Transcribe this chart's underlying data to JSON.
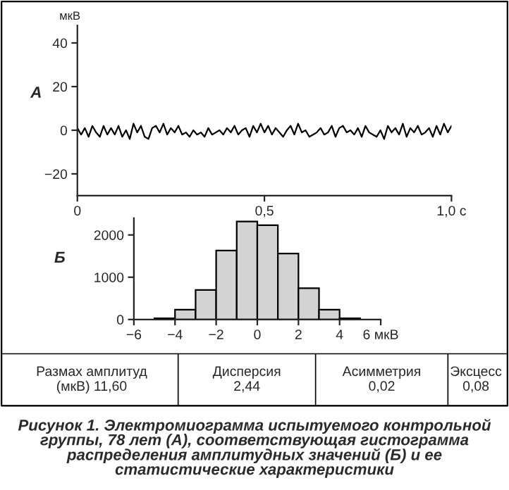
{
  "chart_data": [
    {
      "type": "line",
      "ylabel": "мкВ",
      "annotations": [
        "А"
      ],
      "color": "#000000",
      "x": [
        0,
        0.01,
        0.02,
        0.03,
        0.04,
        0.05,
        0.06,
        0.07,
        0.08,
        0.09,
        0.1,
        0.11,
        0.12,
        0.13,
        0.14,
        0.15,
        0.16,
        0.17,
        0.18,
        0.19,
        0.2,
        0.21,
        0.22,
        0.23,
        0.24,
        0.25,
        0.26,
        0.27,
        0.28,
        0.29,
        0.3,
        0.31,
        0.32,
        0.33,
        0.34,
        0.35,
        0.36,
        0.37,
        0.38,
        0.39,
        0.4,
        0.41,
        0.42,
        0.43,
        0.44,
        0.45,
        0.46,
        0.47,
        0.48,
        0.49,
        0.5,
        0.51,
        0.52,
        0.53,
        0.54,
        0.55,
        0.56,
        0.57,
        0.58,
        0.59,
        0.6,
        0.61,
        0.62,
        0.63,
        0.64,
        0.65,
        0.66,
        0.67,
        0.68,
        0.69,
        0.7,
        0.71,
        0.72,
        0.73,
        0.74,
        0.75,
        0.76,
        0.77,
        0.78,
        0.79,
        0.8,
        0.81,
        0.82,
        0.83,
        0.84,
        0.85,
        0.86,
        0.87,
        0.88,
        0.89,
        0.9,
        0.91,
        0.92,
        0.93,
        0.94,
        0.95,
        0.96,
        0.97,
        0.98,
        0.99,
        1.0
      ],
      "values": [
        1,
        -2,
        1,
        -3,
        2,
        -1,
        -3,
        2,
        -2,
        1,
        -2,
        2,
        -3,
        0,
        -4,
        3,
        -1,
        2,
        -3,
        -4,
        1,
        2,
        -1,
        3,
        -2,
        1,
        -1,
        2,
        -2,
        -1,
        -3,
        0,
        -2,
        -1,
        -3,
        1,
        -2,
        -1,
        0,
        -2,
        1,
        -1,
        2,
        -2,
        0,
        1,
        -3,
        2,
        -1,
        3,
        -1,
        2,
        -2,
        1,
        -1,
        -3,
        0,
        2,
        -2,
        3,
        -1,
        0,
        -3,
        -2,
        -1,
        1,
        -2,
        -1,
        2,
        -3,
        1,
        2,
        -1,
        0,
        -2,
        1,
        -3,
        2,
        -1,
        -2,
        -3,
        0,
        -4,
        2,
        -1,
        1,
        -2,
        3,
        -3,
        1,
        -1,
        2,
        -2,
        -1,
        1,
        -3,
        2,
        -2,
        3,
        -1,
        2
      ],
      "xlim": [
        0,
        1
      ],
      "xticks": [
        0,
        {
          "value": 0.5,
          "label": "0,5"
        },
        {
          "value": 1,
          "label": "1,0 с"
        }
      ],
      "ylim": [
        -30,
        48
      ],
      "yticks": [
        {
          "value": -20,
          "label": "−20"
        },
        0,
        20,
        40
      ],
      "grid": false,
      "line_style": "solid",
      "marker": "none"
    },
    {
      "type": "histogram",
      "annotations": [
        "Б",
        "Размах амплитуд\n(мкВ) 11,60",
        "Дисперсия\n2,44",
        "Асимметрия\n0,02",
        "Эксцесс\n0,08",
        "Рисунок 1. Электромиограмма испытуемого контрольной группы, 78 лет (А), соответствующая гистограмма распределения амплитудных значений (Б) и ее статистические характеристики"
      ],
      "bins": [
        -6,
        -5,
        -4,
        -3,
        -2,
        -1,
        0,
        1,
        2,
        3,
        4,
        5,
        6
      ],
      "values": [
        0,
        30,
        230,
        700,
        1630,
        2320,
        2230,
        1560,
        740,
        230,
        30,
        0
      ],
      "color": "#d3d3d3",
      "xlim": [
        -6,
        6
      ],
      "xticks": [
        {
          "value": -6,
          "label": "−6"
        },
        {
          "value": -4,
          "label": "−4"
        },
        {
          "value": -2,
          "label": "−2"
        },
        0,
        2,
        4,
        {
          "value": 6,
          "label": "6 мкВ"
        }
      ],
      "ylim": [
        0,
        2400
      ],
      "yticks": [
        0,
        1000,
        2000
      ],
      "grid": false
    }
  ]
}
